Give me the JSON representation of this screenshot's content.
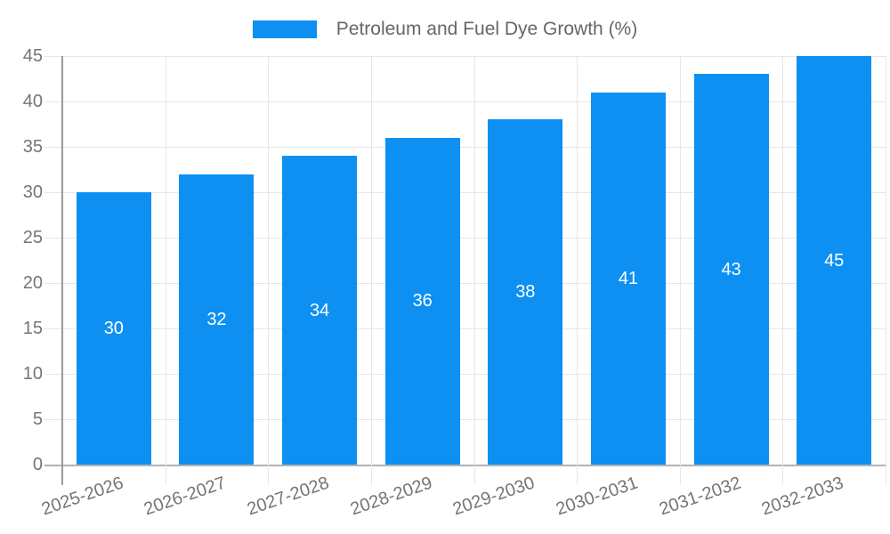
{
  "chart_data": {
    "type": "bar",
    "title": "Petroleum and Fuel Dye Growth (%)",
    "categories": [
      "2025-2026",
      "2026-2027",
      "2027-2028",
      "2028-2029",
      "2029-2030",
      "2030-2031",
      "2031-2032",
      "2032-2033"
    ],
    "values": [
      30,
      32,
      34,
      36,
      38,
      41,
      43,
      45
    ],
    "value_labels": [
      "30",
      "32",
      "34",
      "36",
      "38",
      "41",
      "43",
      "45"
    ],
    "y_ticks": [
      0,
      5,
      10,
      15,
      20,
      25,
      30,
      35,
      40,
      45
    ],
    "ylim": [
      0,
      45
    ],
    "xlabel": "",
    "ylabel": "",
    "legend_position": "top",
    "grid": true,
    "colors": {
      "bar": "#0d90f2",
      "value_label": "#ffffff",
      "axis_label": "#757575",
      "legend_text": "#666666",
      "gridline": "#e6e6e6",
      "baseline": "#b3b3b3",
      "axis_line": "#999999"
    }
  }
}
